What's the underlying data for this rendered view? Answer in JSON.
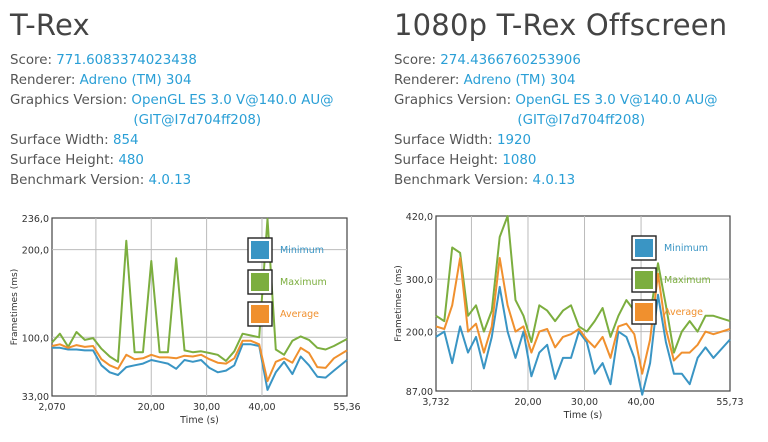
{
  "panels": [
    {
      "title": "T-Rex",
      "info": {
        "score_label": "Score:",
        "score": "771.6083374023438",
        "renderer_label": "Renderer:",
        "renderer": "Adreno (TM) 304",
        "gv_label": "Graphics Version:",
        "gv1": "OpenGL ES 3.0 V@140.0 AU@",
        "gv2": "(GIT@I7d704ff208)",
        "sw_label": "Surface Width:",
        "sw": "854",
        "sh_label": "Surface Height:",
        "sh": "480",
        "bv_label": "Benchmark Version:",
        "bv": "4.0.13"
      }
    },
    {
      "title": "1080p T-Rex Offscreen",
      "info": {
        "score_label": "Score:",
        "score": "274.4366760253906",
        "renderer_label": "Renderer:",
        "renderer": "Adreno (TM) 304",
        "gv_label": "Graphics Version:",
        "gv1": "OpenGL ES 3.0 V@140.0 AU@",
        "gv2": "(GIT@I7d704ff208)",
        "sw_label": "Surface Width:",
        "sw": "1920",
        "sh_label": "Surface Height:",
        "sh": "1080",
        "bv_label": "Benchmark Version:",
        "bv": "4.0.13"
      }
    }
  ],
  "chart_data": [
    {
      "type": "line",
      "xlabel": "Time (s)",
      "ylabel": "Frametimes (ms)",
      "xlim": [
        2.07,
        55.36
      ],
      "ylim": [
        33,
        236
      ],
      "x_ticks": [
        "2,070",
        "20,00",
        "30,00",
        "40,00",
        "55,36"
      ],
      "x_tick_values": [
        2.07,
        20,
        30,
        40,
        55.36
      ],
      "y_ticks": [
        "236,0",
        "200,0",
        "100,0",
        "33,00"
      ],
      "y_tick_values": [
        236,
        200,
        100,
        33
      ],
      "legend": [
        "Minimum",
        "Maximum",
        "Average"
      ],
      "colors": {
        "Minimum": "#3a95c4",
        "Maximum": "#7cae3f",
        "Average": "#f0902e"
      },
      "x": [
        2.07,
        3.5,
        5,
        6.5,
        8,
        9.5,
        11,
        12.5,
        14,
        15.5,
        17,
        18.5,
        20,
        21.5,
        23,
        24.5,
        26,
        27.5,
        29,
        30.5,
        32,
        33.5,
        35,
        36.5,
        38,
        39.5,
        41,
        42.5,
        44,
        45.5,
        47,
        48.5,
        50,
        51.5,
        53,
        55.36
      ],
      "series": [
        {
          "name": "Minimum",
          "values": [
            88,
            88,
            86,
            86,
            85,
            85,
            68,
            60,
            57,
            66,
            68,
            70,
            74,
            72,
            70,
            64,
            74,
            72,
            74,
            65,
            60,
            62,
            68,
            92,
            92,
            90,
            40,
            60,
            72,
            58,
            78,
            68,
            55,
            54,
            62,
            74
          ]
        },
        {
          "name": "Maximum",
          "values": [
            94,
            104,
            89,
            106,
            97,
            99,
            87,
            78,
            72,
            210,
            83,
            83,
            187,
            83,
            83,
            190,
            85,
            83,
            84,
            82,
            80,
            73,
            84,
            104,
            102,
            100,
            235,
            86,
            80,
            96,
            101,
            97,
            88,
            86,
            90,
            98
          ]
        },
        {
          "name": "Average",
          "values": [
            90,
            92,
            88,
            91,
            89,
            90,
            75,
            68,
            64,
            80,
            75,
            76,
            80,
            77,
            77,
            76,
            79,
            78,
            80,
            75,
            71,
            70,
            76,
            96,
            96,
            92,
            50,
            72,
            76,
            71,
            88,
            82,
            66,
            65,
            76,
            85
          ]
        }
      ]
    },
    {
      "type": "line",
      "xlabel": "Time (s)",
      "ylabel": "Frametimes (ms)",
      "xlim": [
        3.732,
        55.73
      ],
      "ylim": [
        87,
        420
      ],
      "x_ticks": [
        "3,732",
        "20,00",
        "30,00",
        "40,00",
        "55,73"
      ],
      "x_tick_values": [
        3.732,
        20,
        30,
        40,
        55.73
      ],
      "y_ticks": [
        "420,0",
        "300,0",
        "200,0",
        "87,00"
      ],
      "y_tick_values": [
        420,
        300,
        200,
        87
      ],
      "legend": [
        "Minimum",
        "Maximum",
        "Average"
      ],
      "colors": {
        "Minimum": "#3a95c4",
        "Maximum": "#7cae3f",
        "Average": "#f0902e"
      },
      "x": [
        3.732,
        5.2,
        6.6,
        8,
        9.4,
        10.8,
        12.2,
        13.6,
        15,
        16.4,
        17.8,
        19.2,
        20.6,
        22,
        23.4,
        24.8,
        26.2,
        27.6,
        29,
        30.4,
        31.8,
        33.2,
        34.6,
        36,
        37.4,
        38.8,
        40.2,
        41.6,
        43,
        44.4,
        45.8,
        47.2,
        48.6,
        50,
        51.4,
        52.8,
        55.73
      ],
      "series": [
        {
          "name": "Minimum",
          "values": [
            190,
            200,
            140,
            210,
            160,
            190,
            130,
            190,
            285,
            200,
            150,
            200,
            115,
            160,
            175,
            110,
            150,
            150,
            200,
            180,
            120,
            140,
            100,
            200,
            190,
            150,
            80,
            140,
            270,
            180,
            120,
            120,
            100,
            150,
            170,
            150,
            185
          ]
        },
        {
          "name": "Maximum",
          "values": [
            230,
            220,
            360,
            350,
            230,
            250,
            200,
            240,
            380,
            420,
            260,
            230,
            180,
            250,
            240,
            220,
            240,
            250,
            210,
            200,
            220,
            245,
            190,
            230,
            260,
            240,
            250,
            230,
            330,
            250,
            160,
            200,
            220,
            200,
            230,
            230,
            220
          ]
        },
        {
          "name": "Average",
          "values": [
            210,
            205,
            250,
            340,
            200,
            215,
            160,
            210,
            340,
            250,
            200,
            210,
            160,
            200,
            205,
            170,
            190,
            195,
            205,
            185,
            170,
            190,
            150,
            210,
            215,
            195,
            120,
            185,
            310,
            205,
            145,
            160,
            160,
            175,
            200,
            195,
            205
          ]
        }
      ]
    }
  ]
}
